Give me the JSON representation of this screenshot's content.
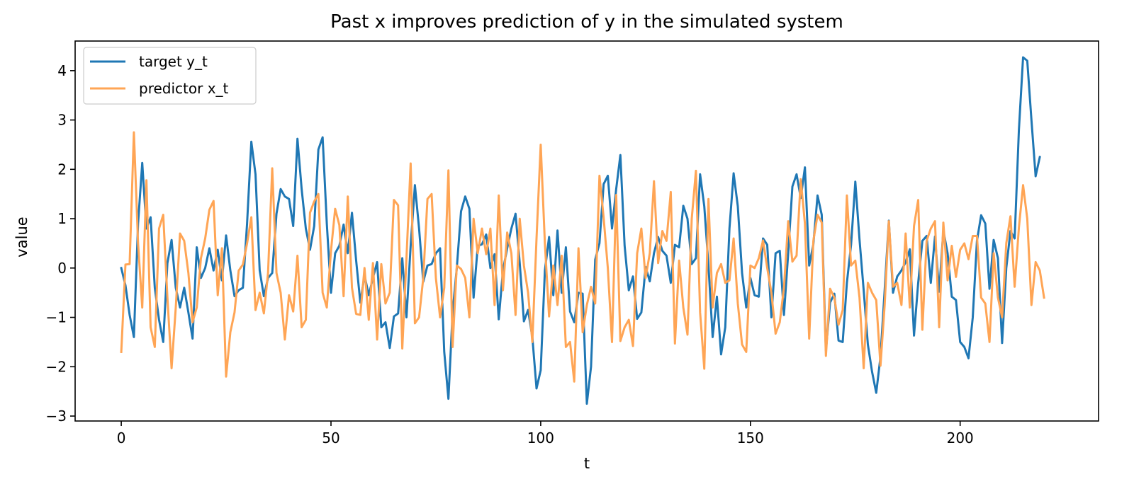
{
  "chart_data": {
    "type": "line",
    "title": "Past x improves prediction of y in the simulated system",
    "xlabel": "t",
    "ylabel": "value",
    "xlim": [
      -11,
      233
    ],
    "ylim": [
      -3.1,
      4.6
    ],
    "xticks": [
      0,
      50,
      100,
      150,
      200
    ],
    "yticks": [
      -3,
      -2,
      -1,
      0,
      1,
      2,
      3,
      4
    ],
    "grid": false,
    "legend_position": "upper-left",
    "series": [
      {
        "name": "target y_t",
        "color": "#1f77b4",
        "values": [
          0.0,
          -0.35,
          -0.95,
          -1.4,
          0.9,
          2.13,
          0.8,
          1.03,
          -0.4,
          -1.05,
          -1.5,
          0.1,
          0.57,
          -0.4,
          -0.8,
          -0.4,
          -0.9,
          -1.43,
          0.42,
          -0.2,
          0.0,
          0.4,
          -0.05,
          0.37,
          -0.25,
          0.66,
          -0.05,
          -0.57,
          -0.45,
          -0.4,
          0.9,
          2.56,
          1.9,
          -0.05,
          -0.57,
          -0.2,
          -0.1,
          1.1,
          1.6,
          1.45,
          1.4,
          0.85,
          2.62,
          1.6,
          0.8,
          0.37,
          0.85,
          2.4,
          2.65,
          0.9,
          -0.5,
          0.3,
          0.45,
          0.88,
          0.3,
          1.12,
          0.15,
          -0.7,
          -0.15,
          -0.55,
          -0.2,
          0.12,
          -1.2,
          -1.1,
          -1.62,
          -0.98,
          -0.92,
          0.2,
          -1.0,
          0.45,
          1.68,
          0.8,
          -0.28,
          0.05,
          0.08,
          0.3,
          0.4,
          -1.7,
          -2.65,
          -0.9,
          0.0,
          1.15,
          1.45,
          1.2,
          -0.6,
          0.45,
          0.48,
          0.68,
          0.0,
          0.28,
          -1.04,
          -0.05,
          0.4,
          0.8,
          1.1,
          0.1,
          -1.08,
          -0.85,
          -1.4,
          -2.44,
          -2.07,
          -0.05,
          0.63,
          -0.55,
          0.76,
          -0.5,
          0.42,
          -0.88,
          -1.1,
          -0.5,
          -0.52,
          -2.75,
          -2.0,
          0.17,
          0.5,
          1.7,
          1.87,
          0.8,
          1.6,
          2.29,
          0.45,
          -0.45,
          -0.17,
          -1.03,
          -0.9,
          0.02,
          -0.27,
          0.3,
          0.63,
          0.35,
          0.25,
          -0.3,
          0.47,
          0.42,
          1.26,
          1.0,
          0.08,
          0.2,
          1.9,
          1.25,
          0.05,
          -1.4,
          -0.58,
          -1.75,
          -1.2,
          0.8,
          1.92,
          1.25,
          -0.1,
          -0.8,
          -0.2,
          -0.55,
          -0.58,
          0.6,
          0.47,
          -1.0,
          0.3,
          0.35,
          -0.95,
          0.3,
          1.65,
          1.9,
          1.42,
          2.04,
          0.05,
          0.48,
          1.47,
          1.08,
          -1.67,
          -0.7,
          -0.52,
          -1.47,
          -1.5,
          -0.3,
          0.47,
          1.75,
          0.58,
          -0.45,
          -1.55,
          -2.1,
          -2.53,
          -1.8,
          -0.45,
          0.96,
          -0.5,
          -0.17,
          -0.05,
          0.12,
          0.38,
          -1.37,
          -0.3,
          0.55,
          0.65,
          -0.3,
          0.64,
          -0.48,
          0.76,
          0.3,
          -0.58,
          -0.65,
          -1.5,
          -1.6,
          -1.83,
          -1.0,
          0.55,
          1.07,
          0.9,
          -0.42,
          0.57,
          0.2,
          -1.52,
          0.0,
          0.75,
          0.6,
          2.8,
          4.27,
          4.2,
          3.0,
          1.86,
          2.25
        ]
      },
      {
        "name": "predictor x_t",
        "color": "#ffa555",
        "values": [
          -1.7,
          0.07,
          0.08,
          2.75,
          0.5,
          -0.8,
          1.78,
          -1.2,
          -1.6,
          0.8,
          1.08,
          -0.6,
          -2.03,
          -0.8,
          0.7,
          0.55,
          -0.1,
          -1.1,
          -0.8,
          0.2,
          0.6,
          1.18,
          1.36,
          -0.55,
          0.4,
          -2.2,
          -1.3,
          -0.9,
          -0.05,
          0.07,
          0.5,
          1.03,
          -0.85,
          -0.5,
          -0.92,
          -0.1,
          2.02,
          -0.1,
          -0.5,
          -1.45,
          -0.55,
          -0.88,
          0.25,
          -1.2,
          -1.05,
          1.12,
          1.35,
          1.5,
          -0.5,
          -0.8,
          0.35,
          1.2,
          0.87,
          -0.57,
          1.45,
          -0.4,
          -0.93,
          -0.95,
          0.0,
          -1.05,
          0.1,
          -1.45,
          0.08,
          -0.72,
          -0.5,
          1.38,
          1.27,
          -1.63,
          0.2,
          2.12,
          -1.12,
          -1.0,
          -0.2,
          1.4,
          1.5,
          -0.2,
          -1.0,
          -0.4,
          1.98,
          -1.6,
          0.05,
          -0.02,
          -0.2,
          -1.0,
          1.0,
          0.3,
          0.8,
          0.28,
          0.8,
          -0.75,
          1.47,
          -0.45,
          0.72,
          0.3,
          -0.95,
          1.0,
          0.05,
          -0.5,
          -1.5,
          0.6,
          2.5,
          0.5,
          -0.98,
          0.05,
          -0.75,
          0.25,
          -1.6,
          -1.5,
          -2.3,
          0.4,
          -1.3,
          -0.75,
          -0.38,
          -0.72,
          1.87,
          1.02,
          0.0,
          -1.5,
          1.48,
          -1.48,
          -1.2,
          -1.05,
          -1.58,
          0.3,
          0.8,
          -0.2,
          0.3,
          1.76,
          0.1,
          0.75,
          0.55,
          1.54,
          -1.53,
          0.15,
          -0.8,
          -1.35,
          1.0,
          1.97,
          -0.9,
          -2.04,
          1.4,
          -0.8,
          -0.1,
          0.08,
          -0.3,
          -0.25,
          0.6,
          -0.72,
          -1.55,
          -1.7,
          0.05,
          0.0,
          0.2,
          0.56,
          0.0,
          -0.5,
          -1.33,
          -1.1,
          -0.4,
          0.95,
          0.13,
          0.25,
          1.8,
          0.9,
          -1.43,
          0.55,
          1.08,
          0.92,
          -1.78,
          -0.42,
          -0.6,
          -1.15,
          -0.85,
          1.47,
          0.05,
          0.15,
          -0.6,
          -2.03,
          -0.3,
          -0.5,
          -0.65,
          -1.98,
          -0.75,
          0.95,
          -0.38,
          -0.3,
          -0.75,
          0.7,
          -0.8,
          0.85,
          1.38,
          -1.25,
          0.55,
          0.8,
          0.95,
          -1.2,
          0.92,
          -0.25,
          0.45,
          -0.18,
          0.37,
          0.5,
          0.18,
          0.65,
          0.65,
          -0.6,
          -0.72,
          -1.5,
          0.3,
          -0.6,
          -1.0,
          0.5,
          1.05,
          -0.38,
          0.82,
          1.68,
          1.0,
          -0.75,
          0.12,
          -0.05,
          -0.6
        ]
      }
    ]
  }
}
